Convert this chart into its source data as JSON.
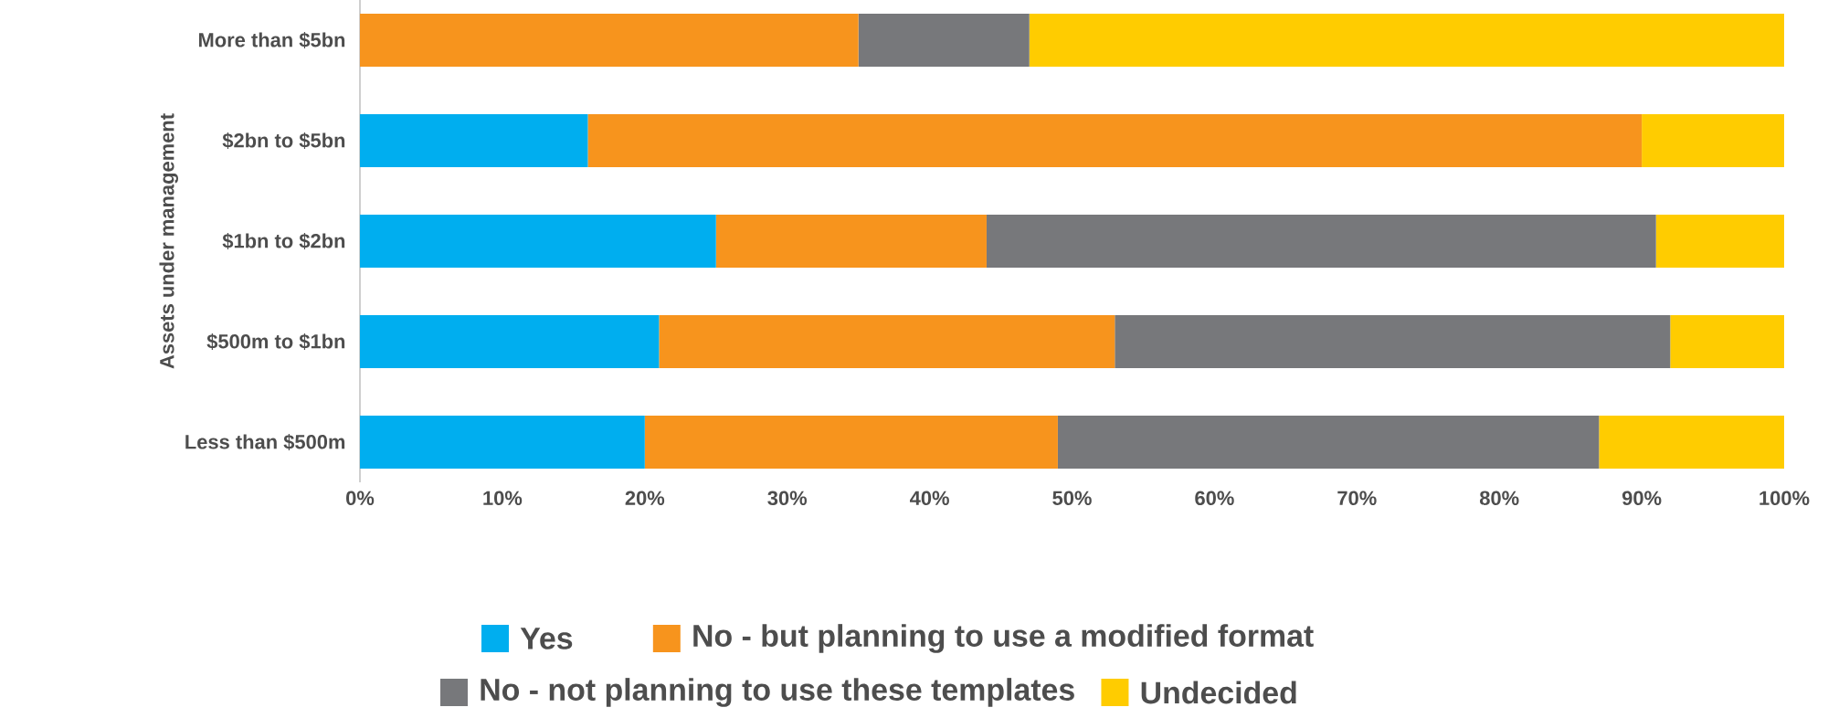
{
  "chart_data": {
    "type": "bar",
    "orientation": "horizontal",
    "stacked": true,
    "ylabel": "Assets under management",
    "categories": [
      "More than $5bn",
      "$2bn to $5bn",
      "$1bn to $2bn",
      "$500m to $1bn",
      "Less than $500m"
    ],
    "series": [
      {
        "name": "Yes",
        "color": "#00aeef",
        "values": [
          0,
          16,
          25,
          21,
          20
        ]
      },
      {
        "name": "No - but planning to use a modified format",
        "color": "#f7941d",
        "values": [
          35,
          74,
          19,
          32,
          29
        ]
      },
      {
        "name": "No - not planning to use these templates",
        "color": "#77787b",
        "values": [
          12,
          0,
          47,
          39,
          38
        ]
      },
      {
        "name": "Undecided",
        "color": "#ffcc00",
        "values": [
          53,
          10,
          9,
          8,
          13
        ]
      }
    ],
    "xlim": [
      0,
      100
    ],
    "xticks": [
      {
        "value": 0,
        "label": "0%"
      },
      {
        "value": 10,
        "label": "10%"
      },
      {
        "value": 20,
        "label": "20%"
      },
      {
        "value": 30,
        "label": "30%"
      },
      {
        "value": 40,
        "label": "40%"
      },
      {
        "value": 50,
        "label": "50%"
      },
      {
        "value": 60,
        "label": "60%"
      },
      {
        "value": 70,
        "label": "70%"
      },
      {
        "value": 80,
        "label": "80%"
      },
      {
        "value": 90,
        "label": "90%"
      },
      {
        "value": 100,
        "label": "100%"
      }
    ],
    "legend": "bottom"
  }
}
